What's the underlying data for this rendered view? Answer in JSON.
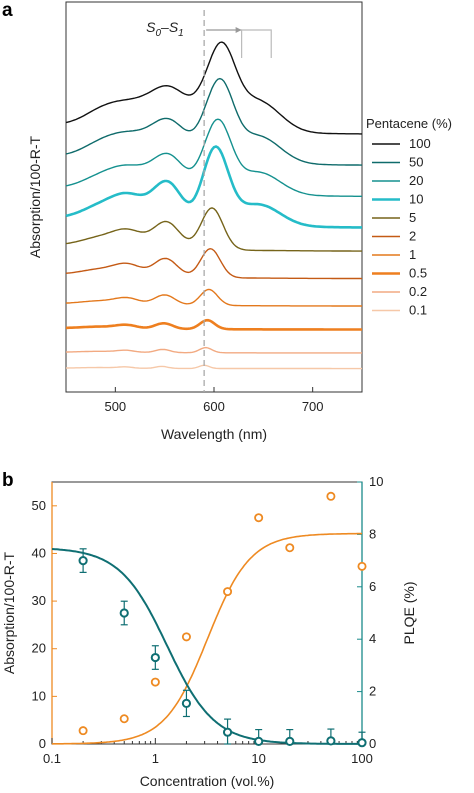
{
  "chart_data": [
    {
      "panel": "a",
      "type": "line",
      "xlabel": "Wavelength (nm)",
      "ylabel": "Absorption/100-R-T",
      "xlim": [
        450,
        750
      ],
      "xticks": [
        500,
        600,
        700
      ],
      "y_ticks_shown": false,
      "annotation": {
        "label": "S0–S1",
        "sub": "0",
        "sub2": "1",
        "wavelength": 590
      },
      "legend": {
        "title": "Pentacene (%)",
        "placement": "right"
      },
      "series": [
        {
          "name": "0.1",
          "color": "#f6c8a8",
          "width": 1.4,
          "offset": 0.06,
          "peak_scale": 0.05
        },
        {
          "name": "0.2",
          "color": "#f2aa82",
          "width": 1.4,
          "offset": 0.1,
          "peak_scale": 0.08
        },
        {
          "name": "0.5",
          "color": "#ee7f1f",
          "width": 2.6,
          "offset": 0.16,
          "peak_scale": 0.14
        },
        {
          "name": "1",
          "color": "#e3781c",
          "width": 1.4,
          "offset": 0.22,
          "peak_scale": 0.25
        },
        {
          "name": "2",
          "color": "#c45a15",
          "width": 1.4,
          "offset": 0.29,
          "peak_scale": 0.45
        },
        {
          "name": "5",
          "color": "#76641a",
          "width": 1.4,
          "offset": 0.36,
          "peak_scale": 0.65
        },
        {
          "name": "10",
          "color": "#25bcc8",
          "width": 2.6,
          "offset": 0.42,
          "peak_scale": 1.0
        },
        {
          "name": "20",
          "color": "#15918f",
          "width": 1.4,
          "offset": 0.5,
          "peak_scale": 0.9
        },
        {
          "name": "50",
          "color": "#0f6b6b",
          "width": 1.4,
          "offset": 0.58,
          "peak_scale": 0.95
        },
        {
          "name": "100",
          "color": "#111111",
          "width": 1.4,
          "offset": 0.66,
          "peak_scale": 0.95
        }
      ]
    },
    {
      "panel": "b",
      "type": "scatter",
      "xlabel": "Concentration (vol.%)",
      "xscale": "log",
      "xlim": [
        0.1,
        100
      ],
      "xticks": [
        0.1,
        1,
        10,
        100
      ],
      "xtick_labels": [
        "0.1",
        "1",
        "10",
        "100"
      ],
      "left_axis": {
        "label": "Absorption/100-R-T",
        "ylim": [
          0,
          55
        ],
        "ticks": [
          0,
          10,
          20,
          30,
          40,
          50
        ],
        "color": "#ee8a22"
      },
      "right_axis": {
        "label": "PLQE (%)",
        "ylim": [
          0,
          10
        ],
        "ticks": [
          0,
          2,
          4,
          6,
          8,
          10
        ],
        "color": "#1a8a8a"
      },
      "absorption": {
        "x": [
          0.2,
          0.5,
          1,
          2,
          5,
          10,
          20,
          50,
          100
        ],
        "y": [
          2.8,
          5.3,
          13,
          22.5,
          32,
          47.5,
          41.2,
          52,
          37.3
        ],
        "fit": {
          "plateau": 44.2,
          "midpoint": 3.2,
          "steepness": 2.1
        }
      },
      "plqe": {
        "x": [
          0.2,
          0.5,
          1,
          2,
          5,
          10,
          20,
          50,
          100
        ],
        "y": [
          7.0,
          5.0,
          3.3,
          1.55,
          0.45,
          0.1,
          0.1,
          0.12,
          0.05
        ],
        "err": [
          0.45,
          0.45,
          0.45,
          0.5,
          0.5,
          0.45,
          0.45,
          0.45,
          0.4
        ],
        "fit": {
          "top": 7.5,
          "midpoint": 1.3,
          "steepness": 1.9
        }
      }
    }
  ]
}
